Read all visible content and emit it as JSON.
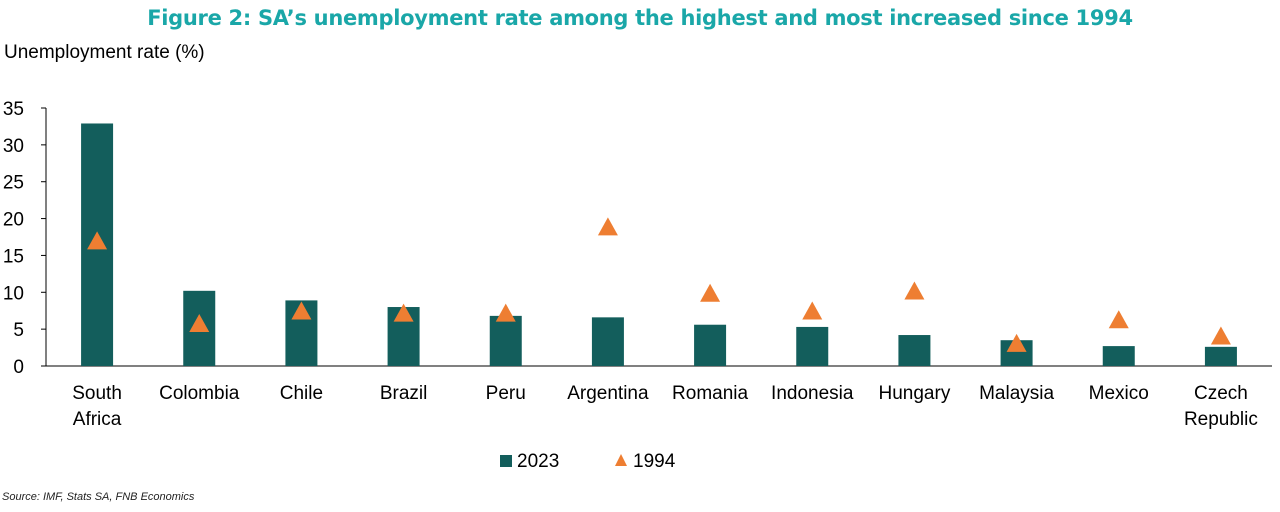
{
  "chart_data": {
    "type": "bar",
    "title": "Figure 2: SA’s unemployment rate among the highest and most increased since 1994",
    "ylabel": "Unemployment rate (%)",
    "xlabel": "",
    "ylim": [
      0,
      35
    ],
    "yticks": [
      0,
      5,
      10,
      15,
      20,
      25,
      30,
      35
    ],
    "categories": [
      [
        "South",
        "Africa"
      ],
      [
        "Colombia"
      ],
      [
        "Chile"
      ],
      [
        "Brazil"
      ],
      [
        "Peru"
      ],
      [
        "Argentina"
      ],
      [
        "Romania"
      ],
      [
        "Indonesia"
      ],
      [
        "Hungary"
      ],
      [
        "Malaysia"
      ],
      [
        "Mexico"
      ],
      [
        "Czech",
        "Republic"
      ]
    ],
    "series": [
      {
        "name": "2023",
        "kind": "bar",
        "color": "#135e5c",
        "values": [
          32.9,
          10.2,
          8.9,
          8.0,
          6.8,
          6.6,
          5.6,
          5.3,
          4.2,
          3.5,
          2.7,
          2.6
        ]
      },
      {
        "name": "1994",
        "kind": "triangle",
        "color": "#ee7e32",
        "values": [
          16.9,
          5.7,
          7.4,
          7.1,
          7.1,
          18.8,
          9.8,
          7.4,
          10.1,
          3.0,
          6.2,
          4.0
        ]
      }
    ],
    "legend": "bottom-center",
    "grid": false
  },
  "source": "Source: IMF, Stats SA, FNB Economics"
}
